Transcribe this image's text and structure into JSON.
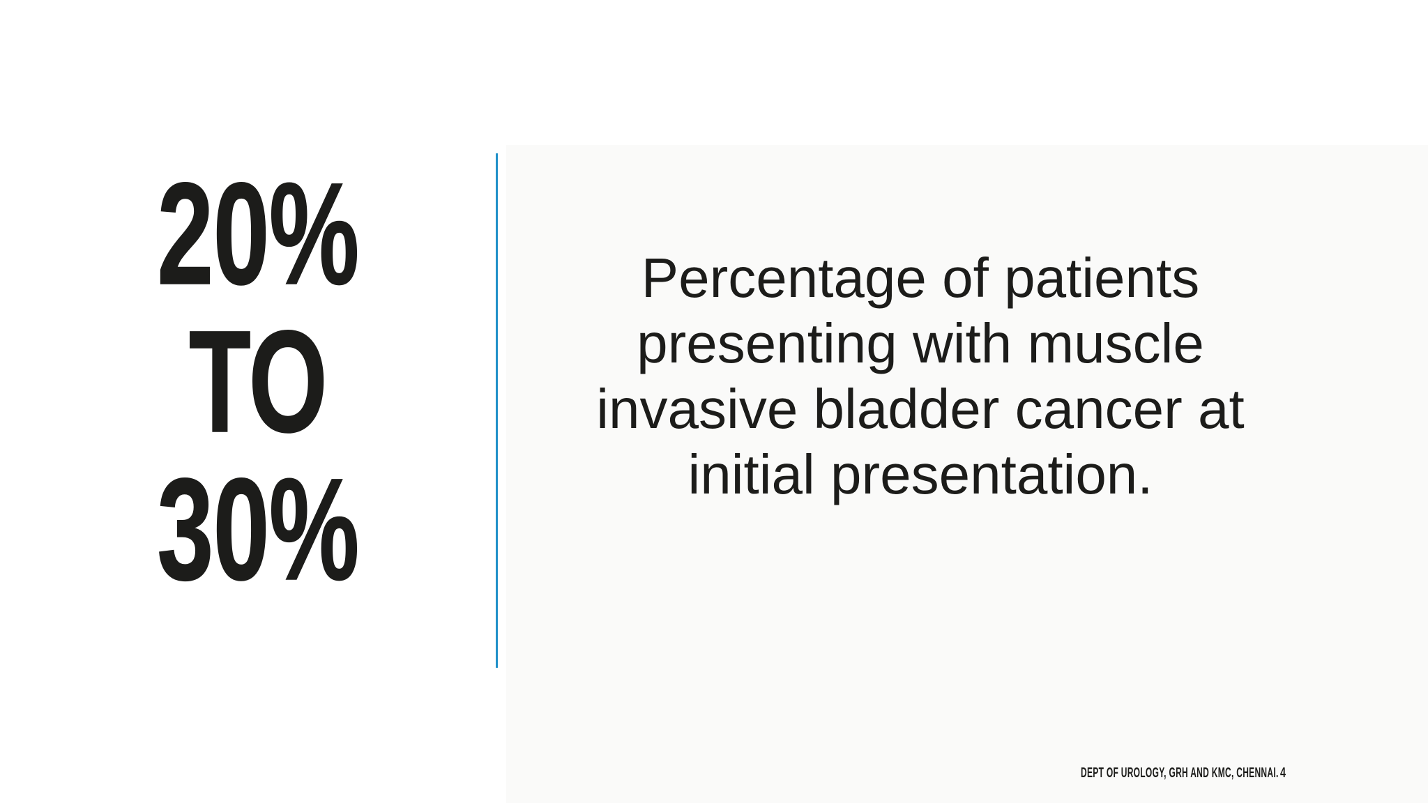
{
  "slide": {
    "stat_lines": [
      "20%",
      "TO",
      "30%"
    ],
    "body_lines": [
      "Percentage of patients",
      "presenting with muscle",
      "invasive bladder cancer at",
      "initial presentation."
    ],
    "footer": {
      "credit": "DEPT OF UROLOGY, GRH AND KMC, CHENNAI.",
      "page_number": "4"
    },
    "colors": {
      "divider": "#2191c9",
      "panel_background": "#fafaf9",
      "text": "#1c1c1a"
    }
  }
}
